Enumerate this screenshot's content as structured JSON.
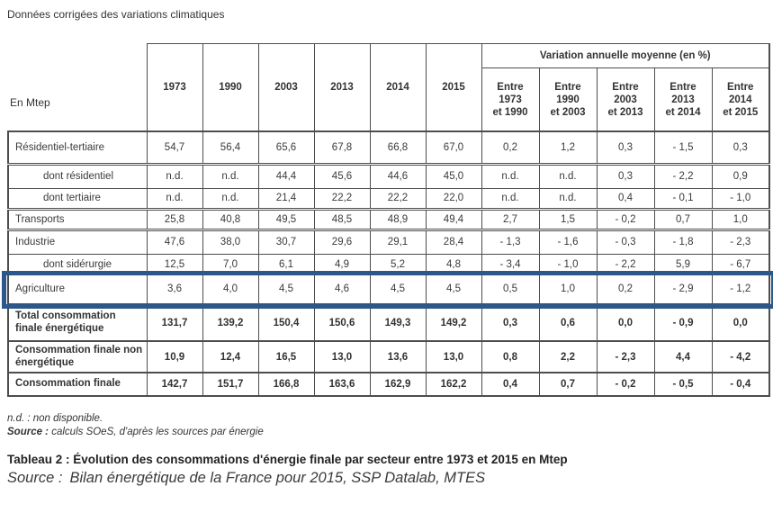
{
  "page": {
    "top_note": "Données corrigées des variations climatiques",
    "footnote_nd": "n.d. : non disponible.",
    "footnote_source_label": "Source :",
    "footnote_source_text": "calculs SOeS, d'après les sources par énergie",
    "caption": "Tableau 2 : Évolution des consommations d'énergie finale par secteur entre 1973 et 2015 en Mtep",
    "caption_source_label": "Source :",
    "caption_source_text": "Bilan énergétique de la France pour 2015, SSP Datalab, MTES"
  },
  "highlight": {
    "row_label": "Agriculture",
    "color": "#2b578c"
  },
  "table": {
    "unit_label": "En Mtep",
    "year_headers": [
      "1973",
      "1990",
      "2003",
      "2013",
      "2014",
      "2015"
    ],
    "variation_group_header": "Variation annuelle moyenne (en %)",
    "variation_headers": [
      "Entre\n1973\net 1990",
      "Entre\n1990\net 2003",
      "Entre\n2003\net 2013",
      "Entre\n2013\net 2014",
      "Entre\n2014\net 2015"
    ],
    "rows": [
      {
        "label": "Résidentiel-tertiaire",
        "indent": false,
        "bold": false,
        "highlight": false,
        "values": [
          "54,7",
          "56,4",
          "65,6",
          "67,8",
          "66,8",
          "67,0",
          "0,2",
          "1,2",
          "0,3",
          "- 1,5",
          "0,3"
        ]
      },
      {
        "label": "dont résidentiel",
        "indent": true,
        "bold": false,
        "highlight": false,
        "values": [
          "n.d.",
          "n.d.",
          "44,4",
          "45,6",
          "44,6",
          "45,0",
          "n.d.",
          "n.d.",
          "0,3",
          "- 2,2",
          "0,9"
        ]
      },
      {
        "label": "dont tertiaire",
        "indent": true,
        "bold": false,
        "highlight": false,
        "values": [
          "n.d.",
          "n.d.",
          "21,4",
          "22,2",
          "22,2",
          "22,0",
          "n.d.",
          "n.d.",
          "0,4",
          "- 0,1",
          "- 1,0"
        ]
      },
      {
        "label": "Transports",
        "indent": false,
        "bold": false,
        "highlight": false,
        "values": [
          "25,8",
          "40,8",
          "49,5",
          "48,5",
          "48,9",
          "49,4",
          "2,7",
          "1,5",
          "- 0,2",
          "0,7",
          "1,0"
        ]
      },
      {
        "label": "Industrie",
        "indent": false,
        "bold": false,
        "highlight": false,
        "values": [
          "47,6",
          "38,0",
          "30,7",
          "29,6",
          "29,1",
          "28,4",
          "- 1,3",
          "- 1,6",
          "- 0,3",
          "- 1,8",
          "- 2,3"
        ]
      },
      {
        "label": "dont sidérurgie",
        "indent": true,
        "bold": false,
        "highlight": false,
        "values": [
          "12,5",
          "7,0",
          "6,1",
          "4,9",
          "5,2",
          "4,8",
          "- 3,4",
          "- 1,0",
          "- 2,2",
          "5,9",
          "- 6,7"
        ]
      },
      {
        "label": "Agriculture",
        "indent": false,
        "bold": false,
        "highlight": true,
        "values": [
          "3,6",
          "4,0",
          "4,5",
          "4,6",
          "4,5",
          "4,5",
          "0,5",
          "1,0",
          "0,2",
          "- 2,9",
          "- 1,2"
        ]
      },
      {
        "label": "Total consommation finale énergétique",
        "indent": false,
        "bold": true,
        "highlight": false,
        "values": [
          "131,7",
          "139,2",
          "150,4",
          "150,6",
          "149,3",
          "149,2",
          "0,3",
          "0,6",
          "0,0",
          "- 0,9",
          "0,0"
        ]
      },
      {
        "label": "Consommation finale non énergétique",
        "indent": false,
        "bold": true,
        "highlight": false,
        "values": [
          "10,9",
          "12,4",
          "16,5",
          "13,0",
          "13,6",
          "13,0",
          "0,8",
          "2,2",
          "- 2,3",
          "4,4",
          "- 4,2"
        ]
      },
      {
        "label": "Consommation finale",
        "indent": false,
        "bold": true,
        "highlight": false,
        "values": [
          "142,7",
          "151,7",
          "166,8",
          "163,6",
          "162,9",
          "162,2",
          "0,4",
          "0,7",
          "- 0,2",
          "- 0,5",
          "- 0,4"
        ]
      }
    ]
  }
}
